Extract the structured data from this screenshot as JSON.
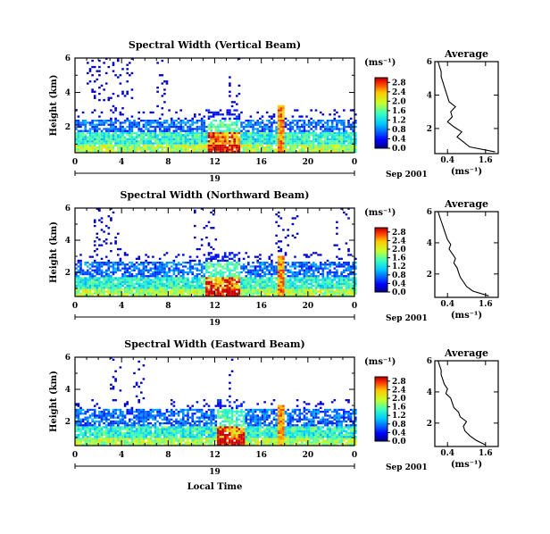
{
  "figure": {
    "xlabel": "Local Time",
    "date_label": "Sep 2001",
    "day_label": "19",
    "units_label": "(ms⁻¹)",
    "ylabel": "Height (km)",
    "avg_title": "Average",
    "avg_xlabel": "(ms⁻¹)"
  },
  "chart_data": [
    {
      "type": "heatmap",
      "title": "Spectral Width (Vertical Beam)",
      "ylabel": "Height (km)",
      "xlim": [
        0,
        24
      ],
      "ylim": [
        0.5,
        6
      ],
      "xticks": [
        "0",
        "4",
        "8",
        "12",
        "16",
        "20",
        "0"
      ],
      "yticks": [
        "2",
        "4",
        "6"
      ],
      "colorbar": {
        "ticks": [
          "0.0",
          "0.4",
          "0.8",
          "1.2",
          "1.6",
          "2.0",
          "2.4",
          "2.8"
        ],
        "range": [
          0,
          3.0
        ]
      },
      "features": {
        "base_top_km": 1.7,
        "band_top_km": 2.4,
        "hot_hours": [
          11.2,
          14.0
        ],
        "spike_hour": 17.6,
        "spike_top_km": 3.2,
        "upper_scatter_hours": [
          [
            1,
            5
          ],
          [
            7,
            8
          ],
          [
            13,
            14
          ]
        ]
      },
      "average": {
        "title": "Average",
        "xlabel": "(ms⁻¹)",
        "xlim": [
          0.0,
          2.0
        ],
        "xticks": [
          "0.4",
          "1.6"
        ],
        "yticks": [
          "2",
          "4",
          "6"
        ],
        "height_km": [
          0.6,
          0.9,
          1.2,
          1.5,
          1.8,
          2.1,
          2.4,
          2.7,
          3.0,
          3.3,
          3.6,
          3.9,
          4.2,
          4.5,
          4.8,
          5.1,
          5.4,
          5.7,
          6.0
        ],
        "width_ms": [
          1.9,
          1.1,
          0.9,
          0.7,
          0.85,
          0.6,
          0.4,
          0.55,
          0.5,
          0.65,
          0.45,
          0.4,
          0.35,
          0.3,
          0.25,
          0.2,
          0.2,
          0.15,
          0.1
        ]
      }
    },
    {
      "type": "heatmap",
      "title": "Spectral Width (Northward Beam)",
      "ylabel": "Height (km)",
      "xlim": [
        0,
        24
      ],
      "ylim": [
        0.5,
        6
      ],
      "xticks": [
        "0",
        "4",
        "8",
        "12",
        "16",
        "20",
        "0"
      ],
      "yticks": [
        "2",
        "4",
        "6"
      ],
      "colorbar": {
        "ticks": [
          "0.0",
          "0.4",
          "0.8",
          "1.2",
          "1.6",
          "2.0",
          "2.4",
          "2.8"
        ],
        "range": [
          0,
          3.0
        ]
      },
      "features": {
        "base_top_km": 1.6,
        "band_top_km": 2.6,
        "hot_hours": [
          11.0,
          14.0
        ],
        "spike_hour": 17.6,
        "spike_top_km": 3.0,
        "upper_scatter_hours": [
          [
            1.5,
            4
          ],
          [
            10,
            12
          ],
          [
            17,
            19
          ],
          [
            22,
            23.5
          ]
        ]
      },
      "average": {
        "title": "Average",
        "xlabel": "(ms⁻¹)",
        "xlim": [
          0.0,
          2.0
        ],
        "xticks": [
          "0.4",
          "1.6"
        ],
        "yticks": [
          "2",
          "4",
          "6"
        ],
        "height_km": [
          0.6,
          0.9,
          1.2,
          1.5,
          1.8,
          2.1,
          2.4,
          2.7,
          3.0,
          3.3,
          3.6,
          3.9,
          4.2,
          4.5,
          4.8,
          5.1,
          5.4,
          5.7,
          6.0
        ],
        "width_ms": [
          1.7,
          1.2,
          1.0,
          0.9,
          0.8,
          0.75,
          0.7,
          0.6,
          0.65,
          0.55,
          0.45,
          0.5,
          0.4,
          0.35,
          0.3,
          0.25,
          0.2,
          0.15,
          0.1
        ]
      }
    },
    {
      "type": "heatmap",
      "title": "Spectral Width (Eastward Beam)",
      "ylabel": "Height (km)",
      "xlim": [
        0,
        24
      ],
      "ylim": [
        0.5,
        6
      ],
      "xticks": [
        "0",
        "4",
        "8",
        "12",
        "16",
        "20",
        "0"
      ],
      "yticks": [
        "2",
        "4",
        "6"
      ],
      "colorbar": {
        "ticks": [
          "0.0",
          "0.4",
          "0.8",
          "1.2",
          "1.6",
          "2.0",
          "2.4",
          "2.8"
        ],
        "range": [
          0,
          3.0
        ]
      },
      "features": {
        "base_top_km": 1.7,
        "band_top_km": 2.7,
        "hot_hours": [
          12.0,
          14.5
        ],
        "spike_hour": 17.6,
        "spike_top_km": 3.0,
        "upper_scatter_hours": [
          [
            2.5,
            4
          ],
          [
            5,
            6
          ],
          [
            13,
            13.5
          ]
        ]
      },
      "average": {
        "title": "Average",
        "xlabel": "(ms⁻¹)",
        "xlim": [
          0.0,
          2.0
        ],
        "xticks": [
          "0.4",
          "1.6"
        ],
        "yticks": [
          "2",
          "4",
          "6"
        ],
        "height_km": [
          0.6,
          0.9,
          1.2,
          1.5,
          1.8,
          2.1,
          2.4,
          2.7,
          3.0,
          3.3,
          3.6,
          3.9,
          4.2,
          4.5,
          4.8,
          5.1,
          5.4,
          5.7,
          6.0
        ],
        "width_ms": [
          1.6,
          1.3,
          1.1,
          0.95,
          0.9,
          1.0,
          0.8,
          0.75,
          0.6,
          0.55,
          0.5,
          0.35,
          0.4,
          0.3,
          0.25,
          0.2,
          0.2,
          0.15,
          0.1
        ]
      }
    }
  ]
}
